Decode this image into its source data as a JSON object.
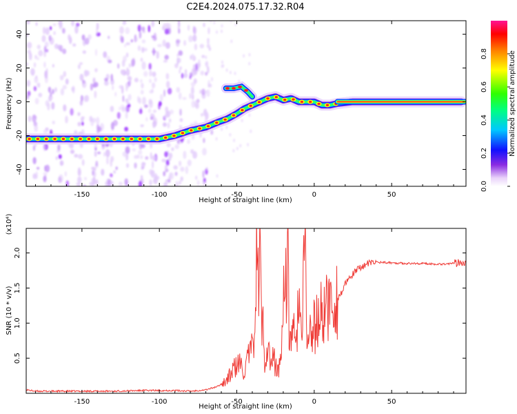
{
  "title": "C2E4.2024.075.17.32.R04",
  "chart_data": [
    {
      "type": "heatmap",
      "xlabel": "Height of straight line (km)",
      "ylabel": "Frequency (Hz)",
      "xlim": [
        -186,
        98
      ],
      "ylim": [
        -50,
        48
      ],
      "xticks": [
        -150,
        -100,
        -50,
        0,
        50
      ],
      "yticks": [
        -40,
        -20,
        0,
        20,
        40
      ],
      "colorbar": {
        "label": "Normalized spectral amplitude",
        "range": [
          0.0,
          1.0
        ],
        "ticks": [
          "0.0",
          "0.2",
          "0.4",
          "0.6",
          "0.8"
        ],
        "tick_values": [
          0.0,
          0.2,
          0.4,
          0.6,
          0.8
        ]
      },
      "main_trace": {
        "x": [
          -186,
          -170,
          -150,
          -130,
          -110,
          -100,
          -90,
          -80,
          -70,
          -62,
          -56,
          -50,
          -45,
          -40,
          -35,
          -30,
          -25,
          -20,
          -15,
          -10,
          -5,
          0,
          5,
          10,
          15,
          25,
          50,
          75,
          95
        ],
        "y": [
          -22,
          -22,
          -22,
          -22,
          -22,
          -22,
          -20,
          -17,
          -15,
          -12,
          -10,
          -7,
          -4,
          -2,
          0,
          2,
          3,
          1,
          2,
          0,
          0,
          0,
          -2,
          -2,
          -1,
          0,
          0,
          0,
          0
        ]
      },
      "branch_trace": {
        "x": [
          -57,
          -52,
          -47,
          -43,
          -40
        ],
        "y": [
          8,
          8,
          9,
          6,
          3
        ]
      },
      "grid": false
    },
    {
      "type": "line",
      "xlabel": "Height of straight line (km)",
      "ylabel": "SNR (10 * v/v)",
      "yscale_label": "(x10⁴)",
      "xlim": [
        -186,
        98
      ],
      "ylim": [
        0,
        2.35
      ],
      "xticks": [
        -150,
        -100,
        -50,
        0,
        50
      ],
      "yticks": [
        0.5,
        1.0,
        1.5,
        2.0
      ],
      "ytick_labels": [
        "0.5",
        "1.0",
        "1.5",
        "2.0"
      ],
      "series": [
        {
          "color": "#ef3b36",
          "x": [
            -186,
            -180,
            -170,
            -150,
            -130,
            -110,
            -100,
            -90,
            -80,
            -70,
            -62,
            -56,
            -52,
            -48,
            -45,
            -42,
            -40,
            -38,
            -37,
            -36,
            -35,
            -34,
            -33,
            -32,
            -30,
            -28,
            -26,
            -24,
            -22,
            -20,
            -19,
            -18,
            -17,
            -16,
            -14,
            -12,
            -10,
            -8,
            -6,
            -5,
            -4,
            -3,
            -2,
            0,
            2,
            5,
            8,
            10,
            12,
            15,
            18,
            20,
            25,
            30,
            35,
            40,
            50,
            60,
            70,
            80,
            90,
            95,
            98
          ],
          "y": [
            0.05,
            0.03,
            0.03,
            0.03,
            0.03,
            0.04,
            0.04,
            0.04,
            0.03,
            0.05,
            0.1,
            0.2,
            0.35,
            0.42,
            0.3,
            0.55,
            0.6,
            1.2,
            2.2,
            1.4,
            2.1,
            1.0,
            0.9,
            0.5,
            0.7,
            0.4,
            0.5,
            0.3,
            0.4,
            1.2,
            2.3,
            1.3,
            1.8,
            0.6,
            1.1,
            0.5,
            1.5,
            0.6,
            2.3,
            1.0,
            0.7,
            0.9,
            0.8,
            0.95,
            1.0,
            1.15,
            1.2,
            1.3,
            1.25,
            1.35,
            1.45,
            1.55,
            1.7,
            1.8,
            1.85,
            1.87,
            1.86,
            1.85,
            1.85,
            1.84,
            1.85,
            1.87,
            1.88
          ]
        }
      ]
    }
  ]
}
